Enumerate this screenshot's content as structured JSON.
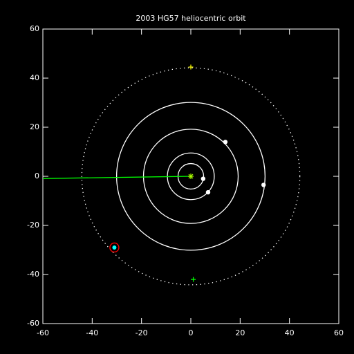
{
  "chart_data": {
    "type": "orbit",
    "title": "2003 HG57 heliocentric orbit",
    "xlim": [
      -60,
      60
    ],
    "ylim": [
      -60,
      60
    ],
    "xticks": [
      -60,
      -40,
      -20,
      0,
      20,
      40,
      60
    ],
    "yticks": [
      -60,
      -40,
      -20,
      0,
      20,
      40,
      60
    ],
    "orbits": {
      "radii": [
        5.2,
        9.5,
        19.2,
        30.1
      ],
      "color": "#ffffff"
    },
    "dotted_orbit": {
      "radius": 44.2,
      "color": "#ffffff"
    },
    "planets": {
      "x": [
        5,
        7,
        14,
        29.5
      ],
      "y": [
        -1,
        -6.5,
        14,
        -3.5
      ],
      "color": "#ffffff"
    },
    "object": {
      "x": -31,
      "y": -29,
      "color": "#00ffff",
      "ring_color": "#ff0000"
    },
    "sight_line": {
      "x": [
        0,
        -60
      ],
      "y": [
        0,
        -0.9
      ],
      "color": "#00ff00"
    },
    "sun": {
      "x": 0,
      "y": 0,
      "color": "#aaff00"
    },
    "markers": {
      "x": [
        0,
        1
      ],
      "y": [
        44.5,
        -42
      ],
      "colors": [
        "#ffff00",
        "#00ff00"
      ]
    }
  }
}
